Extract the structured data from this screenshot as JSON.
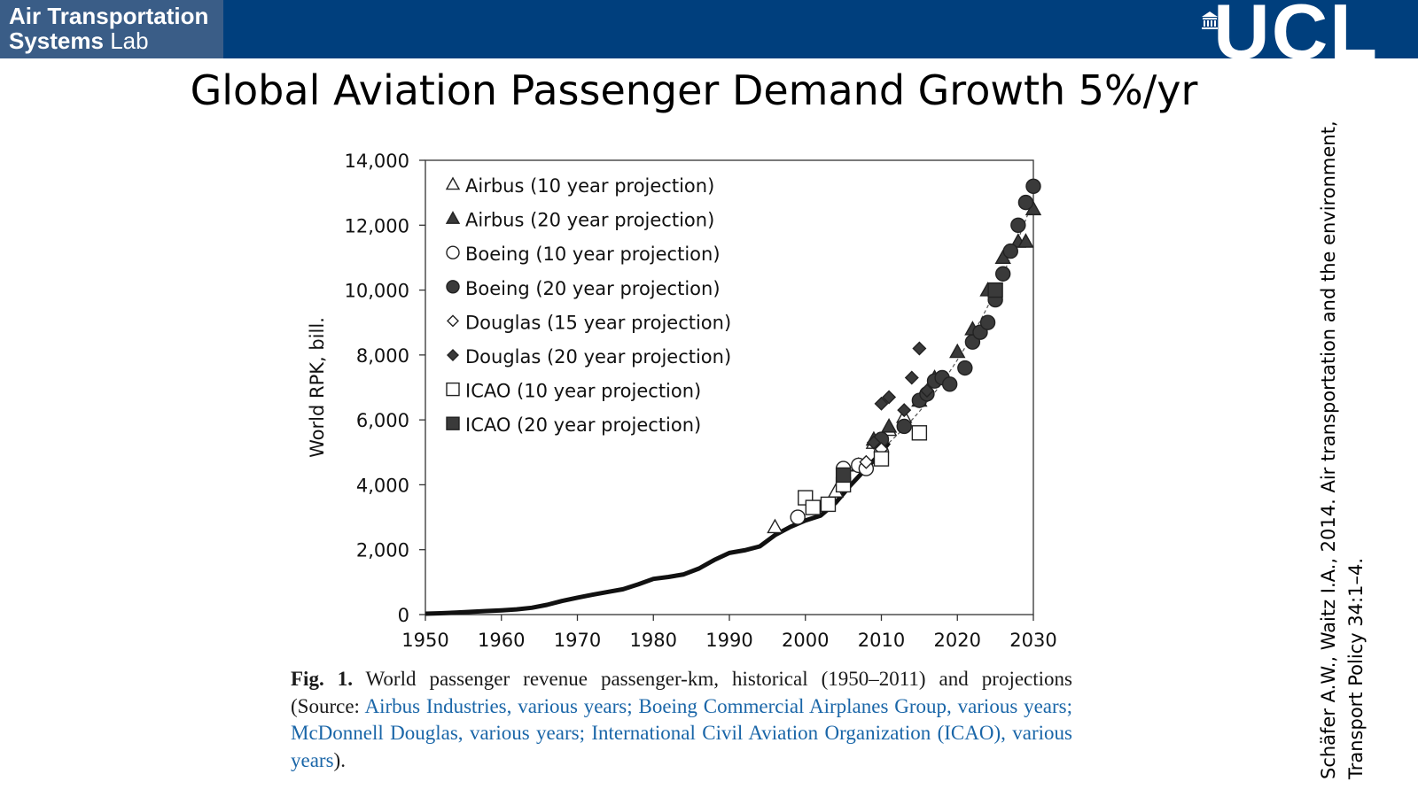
{
  "header": {
    "lab_line1": "Air Transportation",
    "lab_line2_bold": "Systems",
    "lab_line2_rest": " Lab",
    "logo_text": "UCL",
    "bar_color": "#003f7d",
    "lab_box_color": "#3a5d87"
  },
  "slide_title": "Global Aviation Passenger Demand Growth 5%/yr",
  "citation": {
    "line1": "Schäfer A.W., Waitz I.A., 2014. Air transportation and the environment,",
    "line2": "Transport Policy 34:1–4."
  },
  "caption": {
    "fig_label": "Fig. 1.",
    "text_plain": " World passenger revenue passenger-km, historical (1950–2011) and projections (Source: ",
    "source_airbus": "Airbus Industries, various years;",
    "source_boeing": "Boeing Commercial Airplanes Group, various years;",
    "source_douglas": "McDonnell Douglas, various years;",
    "source_icao": "International Civil Aviation Organization (ICAO), various years",
    "text_end": ").",
    "link_color": "#1a66a8"
  },
  "chart_data": {
    "type": "scatter",
    "xlabel": "",
    "ylabel": "World RPK, bill.",
    "xlim": [
      1950,
      2030
    ],
    "ylim": [
      0,
      14000
    ],
    "x_ticks": [
      "1950",
      "1960",
      "1970",
      "1980",
      "1990",
      "2000",
      "2010",
      "2020",
      "2030"
    ],
    "y_ticks": [
      "0",
      "2,000",
      "4,000",
      "6,000",
      "8,000",
      "10,000",
      "12,000",
      "14,000"
    ],
    "legend_position": "top-left",
    "grid": false,
    "historical": {
      "x": [
        1950,
        1952,
        1954,
        1956,
        1958,
        1960,
        1962,
        1964,
        1966,
        1968,
        1970,
        1972,
        1974,
        1976,
        1978,
        1980,
        1982,
        1984,
        1986,
        1988,
        1990,
        1992,
        1994,
        1996,
        1998,
        2000,
        2002,
        2004,
        2006,
        2008,
        2010,
        2011
      ],
      "y": [
        28,
        40,
        60,
        85,
        110,
        130,
        160,
        210,
        300,
        420,
        520,
        610,
        700,
        780,
        930,
        1100,
        1160,
        1240,
        1420,
        1680,
        1900,
        1980,
        2100,
        2450,
        2700,
        2900,
        3050,
        3450,
        4000,
        4500,
        5000,
        5300
      ]
    },
    "series": [
      {
        "name": "Airbus (10 year projection)",
        "marker": "triangle-open",
        "x": [
          1996,
          2004,
          2007,
          2009,
          2011,
          2013
        ],
        "y": [
          2700,
          3800,
          4600,
          5300,
          5700,
          6100
        ]
      },
      {
        "name": "Airbus (20 year projection)",
        "marker": "triangle-filled",
        "x": [
          2009,
          2011,
          2015,
          2017,
          2020,
          2022,
          2024,
          2026,
          2028,
          2029,
          2030
        ],
        "y": [
          5400,
          5800,
          6600,
          7300,
          8100,
          8800,
          10000,
          11000,
          11500,
          11500,
          12500
        ]
      },
      {
        "name": "Boeing (10 year projection)",
        "marker": "circle-open",
        "x": [
          1999,
          2005,
          2007,
          2008,
          2010
        ],
        "y": [
          3000,
          4500,
          4600,
          4500,
          5000
        ]
      },
      {
        "name": "Boeing (20 year projection)",
        "marker": "circle-filled",
        "x": [
          2010,
          2013,
          2015,
          2016,
          2017,
          2018,
          2019,
          2021,
          2022,
          2023,
          2024,
          2025,
          2026,
          2027,
          2028,
          2029,
          2030
        ],
        "y": [
          5400,
          5800,
          6600,
          6800,
          7200,
          7300,
          7100,
          7600,
          8400,
          8700,
          9000,
          9700,
          10500,
          11200,
          12000,
          12700,
          13200
        ]
      },
      {
        "name": "Douglas (15 year projection)",
        "marker": "diamond-open",
        "x": [
          2008,
          2010
        ],
        "y": [
          4700,
          5100
        ]
      },
      {
        "name": "Douglas (20 year projection)",
        "marker": "diamond-filled",
        "x": [
          2009,
          2010,
          2011,
          2013,
          2014,
          2015,
          2016
        ],
        "y": [
          5300,
          6500,
          6700,
          6300,
          7300,
          8200,
          6900
        ]
      },
      {
        "name": "ICAO (10 year projection)",
        "marker": "square-open",
        "x": [
          2000,
          2001,
          2003,
          2005,
          2010,
          2015
        ],
        "y": [
          3600,
          3300,
          3400,
          4000,
          4800,
          5600
        ]
      },
      {
        "name": "ICAO (20 year projection)",
        "marker": "square-filled",
        "x": [
          2005,
          2025
        ],
        "y": [
          4300,
          10000
        ]
      }
    ]
  }
}
